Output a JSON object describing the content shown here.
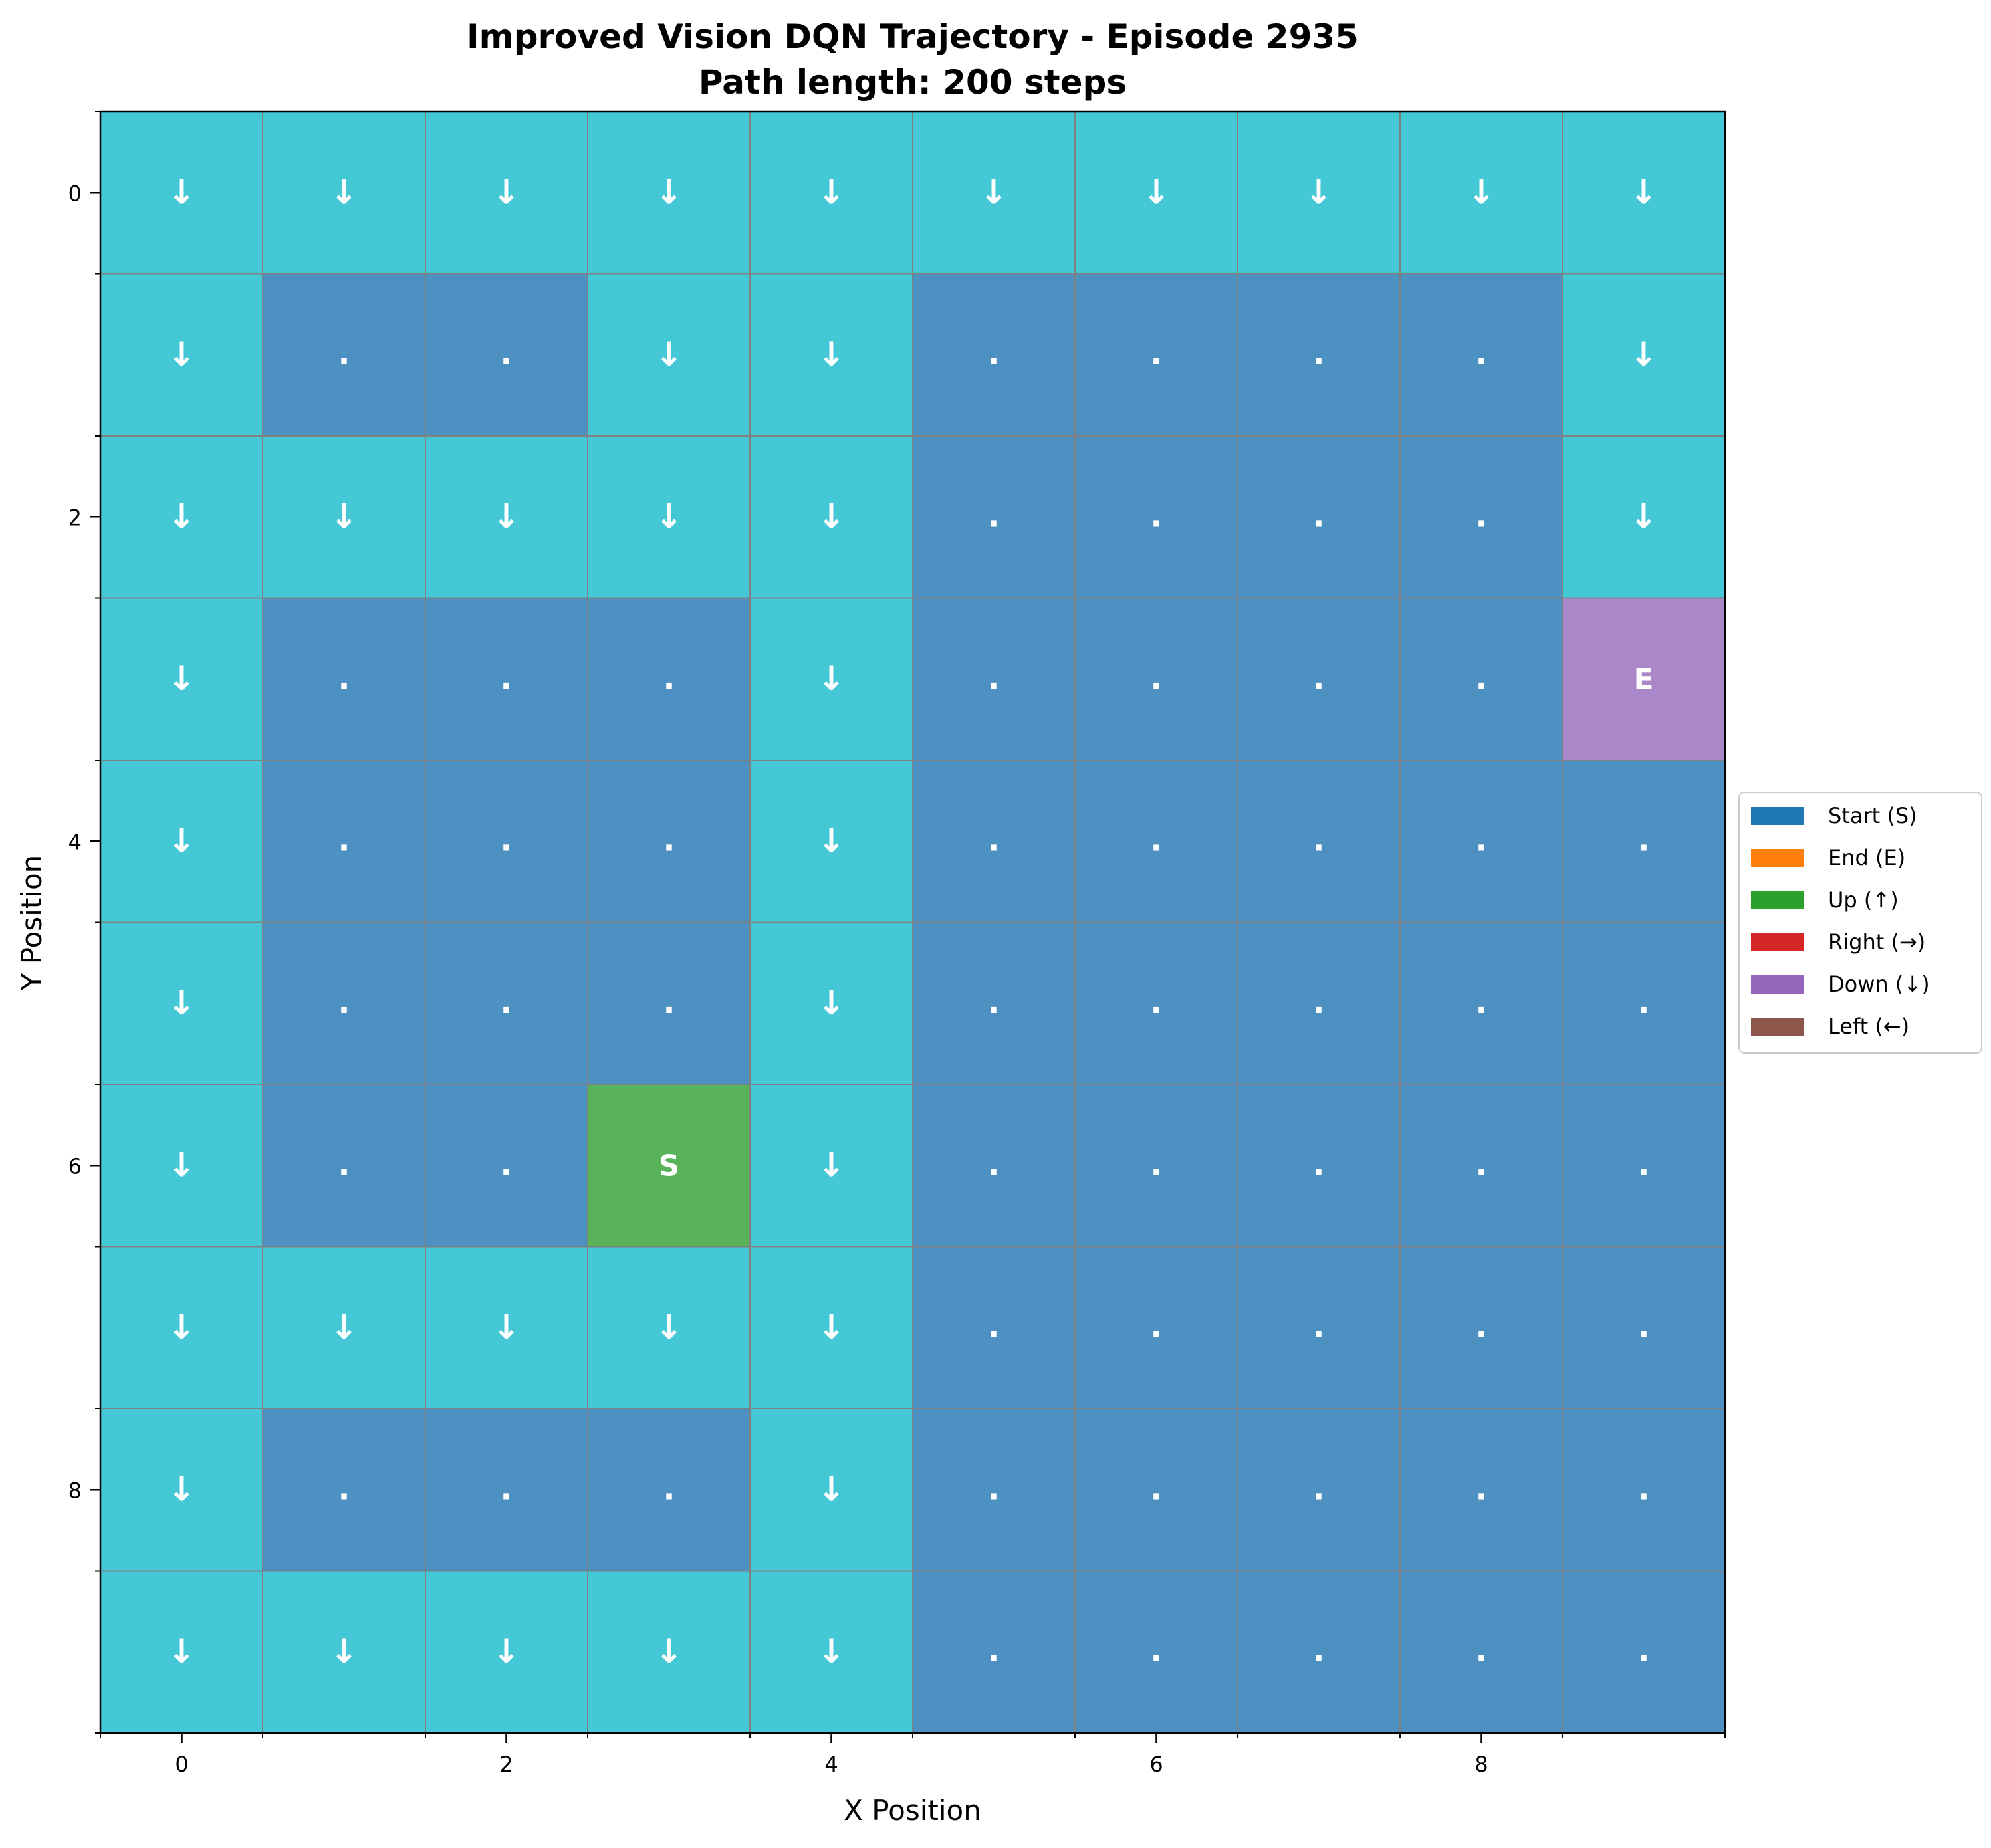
{
  "chart_data": {
    "type": "heatmap",
    "title_line1": "Improved Vision DQN Trajectory - Episode 2935",
    "title_line2": "Path length: 200 steps",
    "xlabel": "X Position",
    "ylabel": "Y Position",
    "xlim": [
      -0.5,
      9.5
    ],
    "ylim": [
      9.5,
      -0.5
    ],
    "x_ticks": [
      0,
      2,
      4,
      6,
      8
    ],
    "y_ticks": [
      0,
      2,
      4,
      6,
      8
    ],
    "x_tick_labels": [
      "0",
      "2",
      "4",
      "6",
      "8"
    ],
    "y_tick_labels": [
      "0",
      "2",
      "4",
      "6",
      "8"
    ],
    "grid": true,
    "legend_position": "right, outside plot",
    "legend": [
      {
        "label": "Start (S)",
        "color": "#1f77b4"
      },
      {
        "label": "End (E)",
        "color": "#ff7f0e"
      },
      {
        "label": "Up (↑)",
        "color": "#2ca02c"
      },
      {
        "label": "Right (→)",
        "color": "#d62728"
      },
      {
        "label": "Down (↓)",
        "color": "#9467bd"
      },
      {
        "label": "Left (←)",
        "color": "#8c564b"
      }
    ],
    "cell_colors": {
      "path": "#45c8d6",
      "empty": "#4d90c2",
      "start": "#58b359",
      "end": "#a987c9",
      "grid_line": "#808080",
      "cell_text": "#ffffff"
    },
    "grid_cells": [
      [
        "↓",
        "↓",
        "↓",
        "↓",
        "↓",
        "↓",
        "↓",
        "↓",
        "↓",
        "↓"
      ],
      [
        "↓",
        ".",
        ".",
        "↓",
        "↓",
        ".",
        ".",
        ".",
        ".",
        "↓"
      ],
      [
        "↓",
        "↓",
        "↓",
        "↓",
        "↓",
        ".",
        ".",
        ".",
        ".",
        "↓"
      ],
      [
        "↓",
        ".",
        ".",
        ".",
        "↓",
        ".",
        ".",
        ".",
        ".",
        "E"
      ],
      [
        "↓",
        ".",
        ".",
        ".",
        "↓",
        ".",
        ".",
        ".",
        ".",
        "."
      ],
      [
        "↓",
        ".",
        ".",
        ".",
        "↓",
        ".",
        ".",
        ".",
        ".",
        "."
      ],
      [
        "↓",
        ".",
        ".",
        "S",
        "↓",
        ".",
        ".",
        ".",
        ".",
        "."
      ],
      [
        "↓",
        "↓",
        "↓",
        "↓",
        "↓",
        ".",
        ".",
        ".",
        ".",
        "."
      ],
      [
        "↓",
        ".",
        ".",
        ".",
        "↓",
        ".",
        ".",
        ".",
        ".",
        "."
      ],
      [
        "↓",
        "↓",
        "↓",
        "↓",
        "↓",
        ".",
        ".",
        ".",
        ".",
        "."
      ]
    ]
  }
}
